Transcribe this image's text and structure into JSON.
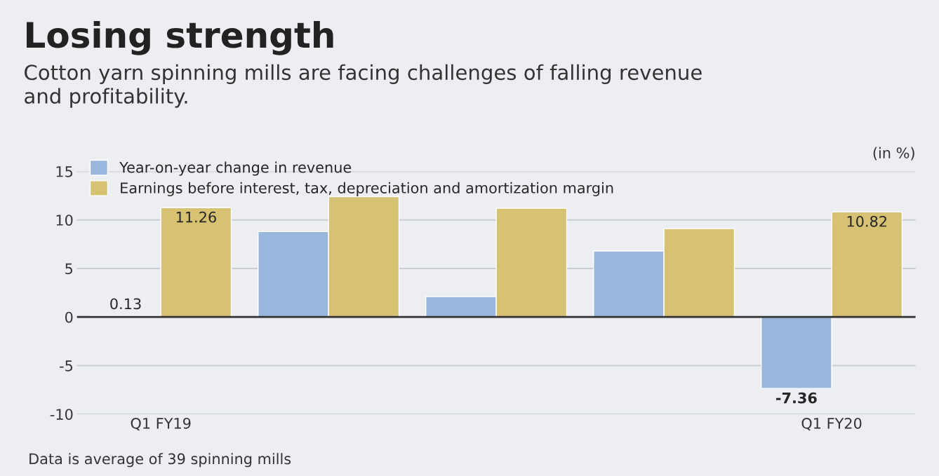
{
  "chart_data": {
    "type": "bar",
    "title": "Losing strength",
    "subtitle": "Cotton yarn spinning mills are facing challenges of falling revenue\nand profitability.",
    "categories": [
      "Q1 FY19",
      null,
      null,
      null,
      "Q1 FY20"
    ],
    "series": [
      {
        "name": "Year-on-year change in revenue",
        "color": "#9ab6dc",
        "values": [
          0.13,
          8.8,
          2.1,
          6.8,
          -7.36
        ],
        "value_labels": [
          "0.13",
          null,
          null,
          null,
          "-7.36"
        ]
      },
      {
        "name": "Earnings before interest, tax, depreciation and amortization margin",
        "color": "#d7c173",
        "values": [
          11.26,
          12.4,
          11.2,
          9.1,
          10.82
        ],
        "value_labels": [
          "11.26",
          null,
          null,
          null,
          "10.82"
        ]
      }
    ],
    "ylim": [
      -10,
      15
    ],
    "yticks": [
      -10,
      -5,
      0,
      5,
      10,
      15
    ],
    "grid": "y",
    "legend": "top left",
    "annotations": [
      "(in %)",
      "Data is average of 39 spinning mills"
    ]
  }
}
